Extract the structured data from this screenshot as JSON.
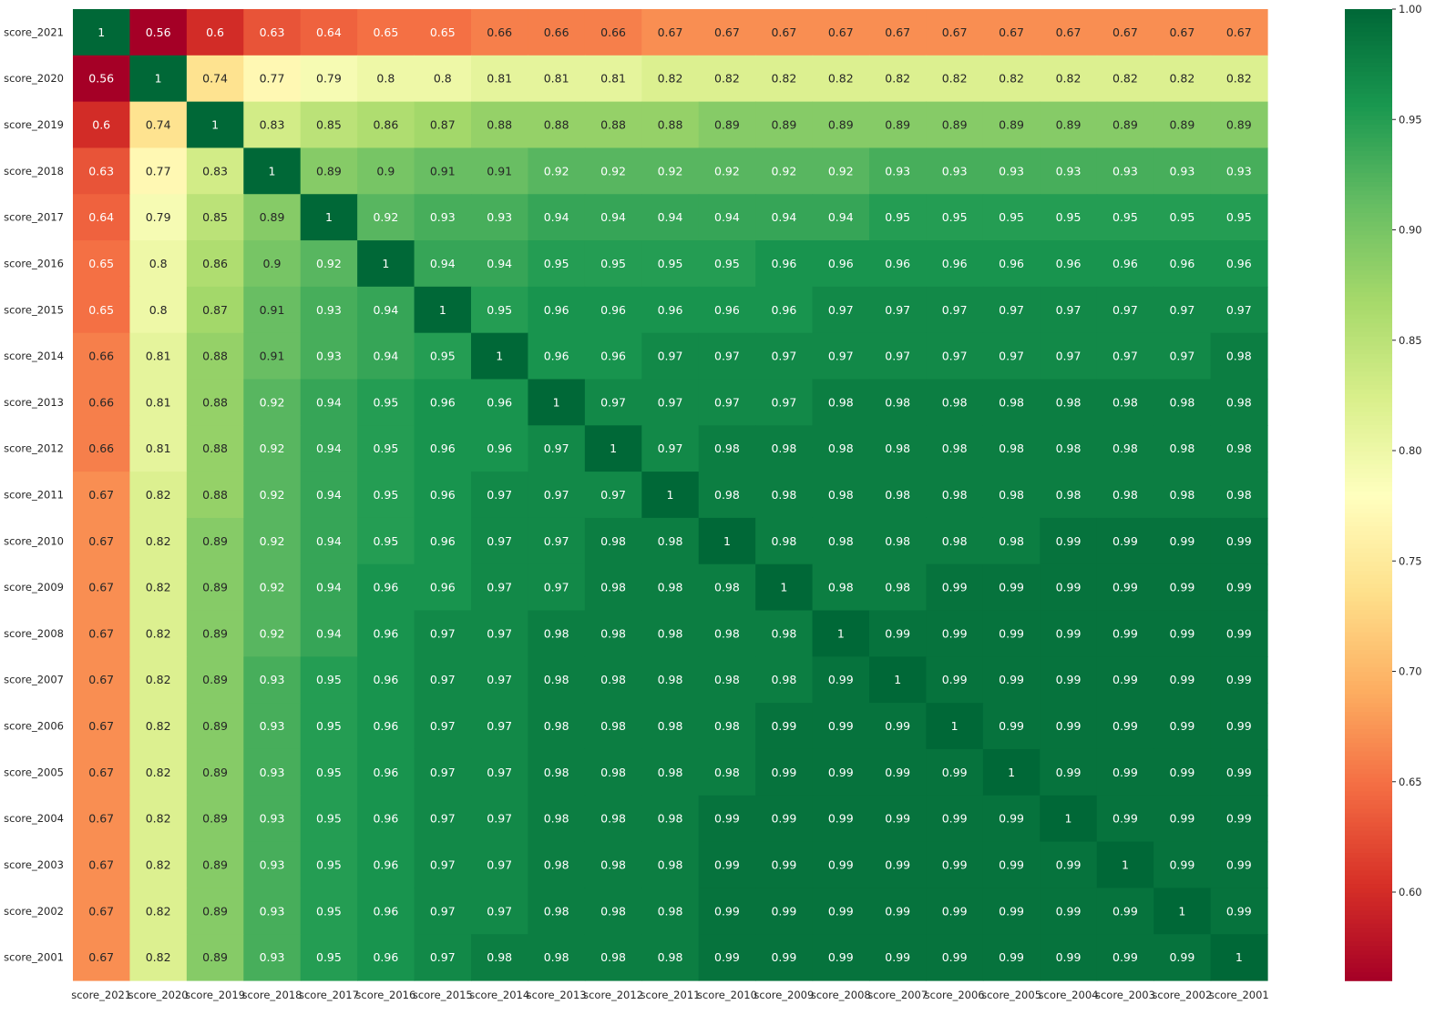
{
  "chart_data": {
    "type": "heatmap",
    "title": "",
    "xlabel": "",
    "ylabel": "",
    "x_labels": [
      "score_2021",
      "score_2020",
      "score_2019",
      "score_2018",
      "score_2017",
      "score_2016",
      "score_2015",
      "score_2014",
      "score_2013",
      "score_2012",
      "score_2011",
      "score_2010",
      "score_2009",
      "score_2008",
      "score_2007",
      "score_2006",
      "score_2005",
      "score_2004",
      "score_2003",
      "score_2002",
      "score_2001"
    ],
    "y_labels": [
      "score_2021",
      "score_2020",
      "score_2019",
      "score_2018",
      "score_2017",
      "score_2016",
      "score_2015",
      "score_2014",
      "score_2013",
      "score_2012",
      "score_2011",
      "score_2010",
      "score_2009",
      "score_2008",
      "score_2007",
      "score_2006",
      "score_2005",
      "score_2004",
      "score_2003",
      "score_2002",
      "score_2001"
    ],
    "values": [
      [
        1,
        0.56,
        0.6,
        0.63,
        0.64,
        0.65,
        0.65,
        0.66,
        0.66,
        0.66,
        0.67,
        0.67,
        0.67,
        0.67,
        0.67,
        0.67,
        0.67,
        0.67,
        0.67,
        0.67,
        0.67
      ],
      [
        0.56,
        1,
        0.74,
        0.77,
        0.79,
        0.8,
        0.8,
        0.81,
        0.81,
        0.81,
        0.82,
        0.82,
        0.82,
        0.82,
        0.82,
        0.82,
        0.82,
        0.82,
        0.82,
        0.82,
        0.82
      ],
      [
        0.6,
        0.74,
        1,
        0.83,
        0.85,
        0.86,
        0.87,
        0.88,
        0.88,
        0.88,
        0.88,
        0.89,
        0.89,
        0.89,
        0.89,
        0.89,
        0.89,
        0.89,
        0.89,
        0.89,
        0.89
      ],
      [
        0.63,
        0.77,
        0.83,
        1,
        0.89,
        0.9,
        0.91,
        0.91,
        0.92,
        0.92,
        0.92,
        0.92,
        0.92,
        0.92,
        0.93,
        0.93,
        0.93,
        0.93,
        0.93,
        0.93,
        0.93
      ],
      [
        0.64,
        0.79,
        0.85,
        0.89,
        1,
        0.92,
        0.93,
        0.93,
        0.94,
        0.94,
        0.94,
        0.94,
        0.94,
        0.94,
        0.95,
        0.95,
        0.95,
        0.95,
        0.95,
        0.95,
        0.95
      ],
      [
        0.65,
        0.8,
        0.86,
        0.9,
        0.92,
        1,
        0.94,
        0.94,
        0.95,
        0.95,
        0.95,
        0.95,
        0.96,
        0.96,
        0.96,
        0.96,
        0.96,
        0.96,
        0.96,
        0.96,
        0.96
      ],
      [
        0.65,
        0.8,
        0.87,
        0.91,
        0.93,
        0.94,
        1,
        0.95,
        0.96,
        0.96,
        0.96,
        0.96,
        0.96,
        0.97,
        0.97,
        0.97,
        0.97,
        0.97,
        0.97,
        0.97,
        0.97
      ],
      [
        0.66,
        0.81,
        0.88,
        0.91,
        0.93,
        0.94,
        0.95,
        1,
        0.96,
        0.96,
        0.97,
        0.97,
        0.97,
        0.97,
        0.97,
        0.97,
        0.97,
        0.97,
        0.97,
        0.97,
        0.98
      ],
      [
        0.66,
        0.81,
        0.88,
        0.92,
        0.94,
        0.95,
        0.96,
        0.96,
        1,
        0.97,
        0.97,
        0.97,
        0.97,
        0.98,
        0.98,
        0.98,
        0.98,
        0.98,
        0.98,
        0.98,
        0.98
      ],
      [
        0.66,
        0.81,
        0.88,
        0.92,
        0.94,
        0.95,
        0.96,
        0.96,
        0.97,
        1,
        0.97,
        0.98,
        0.98,
        0.98,
        0.98,
        0.98,
        0.98,
        0.98,
        0.98,
        0.98,
        0.98
      ],
      [
        0.67,
        0.82,
        0.88,
        0.92,
        0.94,
        0.95,
        0.96,
        0.97,
        0.97,
        0.97,
        1,
        0.98,
        0.98,
        0.98,
        0.98,
        0.98,
        0.98,
        0.98,
        0.98,
        0.98,
        0.98
      ],
      [
        0.67,
        0.82,
        0.89,
        0.92,
        0.94,
        0.95,
        0.96,
        0.97,
        0.97,
        0.98,
        0.98,
        1,
        0.98,
        0.98,
        0.98,
        0.98,
        0.98,
        0.99,
        0.99,
        0.99,
        0.99
      ],
      [
        0.67,
        0.82,
        0.89,
        0.92,
        0.94,
        0.96,
        0.96,
        0.97,
        0.97,
        0.98,
        0.98,
        0.98,
        1,
        0.98,
        0.98,
        0.99,
        0.99,
        0.99,
        0.99,
        0.99,
        0.99
      ],
      [
        0.67,
        0.82,
        0.89,
        0.92,
        0.94,
        0.96,
        0.97,
        0.97,
        0.98,
        0.98,
        0.98,
        0.98,
        0.98,
        1,
        0.99,
        0.99,
        0.99,
        0.99,
        0.99,
        0.99,
        0.99
      ],
      [
        0.67,
        0.82,
        0.89,
        0.93,
        0.95,
        0.96,
        0.97,
        0.97,
        0.98,
        0.98,
        0.98,
        0.98,
        0.98,
        0.99,
        1,
        0.99,
        0.99,
        0.99,
        0.99,
        0.99,
        0.99
      ],
      [
        0.67,
        0.82,
        0.89,
        0.93,
        0.95,
        0.96,
        0.97,
        0.97,
        0.98,
        0.98,
        0.98,
        0.98,
        0.99,
        0.99,
        0.99,
        1,
        0.99,
        0.99,
        0.99,
        0.99,
        0.99
      ],
      [
        0.67,
        0.82,
        0.89,
        0.93,
        0.95,
        0.96,
        0.97,
        0.97,
        0.98,
        0.98,
        0.98,
        0.98,
        0.99,
        0.99,
        0.99,
        0.99,
        1,
        0.99,
        0.99,
        0.99,
        0.99
      ],
      [
        0.67,
        0.82,
        0.89,
        0.93,
        0.95,
        0.96,
        0.97,
        0.97,
        0.98,
        0.98,
        0.98,
        0.99,
        0.99,
        0.99,
        0.99,
        0.99,
        0.99,
        1,
        0.99,
        0.99,
        0.99
      ],
      [
        0.67,
        0.82,
        0.89,
        0.93,
        0.95,
        0.96,
        0.97,
        0.97,
        0.98,
        0.98,
        0.98,
        0.99,
        0.99,
        0.99,
        0.99,
        0.99,
        0.99,
        0.99,
        1,
        0.99,
        0.99
      ],
      [
        0.67,
        0.82,
        0.89,
        0.93,
        0.95,
        0.96,
        0.97,
        0.97,
        0.98,
        0.98,
        0.98,
        0.99,
        0.99,
        0.99,
        0.99,
        0.99,
        0.99,
        0.99,
        0.99,
        1,
        0.99
      ],
      [
        0.67,
        0.82,
        0.89,
        0.93,
        0.95,
        0.96,
        0.97,
        0.98,
        0.98,
        0.98,
        0.98,
        0.99,
        0.99,
        0.99,
        0.99,
        0.99,
        0.99,
        0.99,
        0.99,
        0.99,
        1
      ]
    ],
    "colormap": "RdYlGn",
    "vmin": 0.56,
    "vmax": 1.0,
    "colorbar_ticks": [
      0.6,
      0.65,
      0.7,
      0.75,
      0.8,
      0.85,
      0.9,
      0.95,
      1.0
    ],
    "colorbar_tick_labels": [
      "0.60",
      "0.65",
      "0.70",
      "0.75",
      "0.80",
      "0.85",
      "0.90",
      "0.95",
      "1.00"
    ],
    "annotations": true,
    "grid": false,
    "colorbar_placement": "right"
  }
}
